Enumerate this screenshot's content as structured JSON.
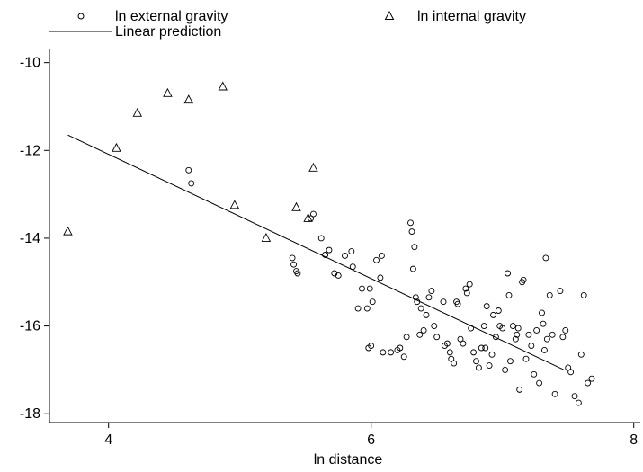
{
  "chart_data": {
    "type": "scatter",
    "xlabel": "ln distance",
    "ylabel": "",
    "xlim": [
      3.55,
      8.05
    ],
    "ylim": [
      -18.2,
      -9.7
    ],
    "xticks": [
      4,
      6,
      8
    ],
    "yticks": [
      -10,
      -12,
      -14,
      -16,
      -18
    ],
    "legend": {
      "placement": "top",
      "items": [
        {
          "label": "ln external gravity",
          "marker": "circle"
        },
        {
          "label": "ln internal gravity",
          "marker": "triangle"
        },
        {
          "label": "Linear prediction",
          "marker": "line"
        }
      ]
    },
    "series": [
      {
        "name": "ln external gravity",
        "marker": "circle",
        "points": [
          [
            4.61,
            -12.45
          ],
          [
            4.63,
            -12.75
          ],
          [
            5.4,
            -14.45
          ],
          [
            5.41,
            -14.6
          ],
          [
            5.43,
            -14.75
          ],
          [
            5.44,
            -14.8
          ],
          [
            5.54,
            -13.55
          ],
          [
            5.56,
            -13.45
          ],
          [
            5.62,
            -14.0
          ],
          [
            5.65,
            -14.38
          ],
          [
            5.68,
            -14.27
          ],
          [
            5.72,
            -14.8
          ],
          [
            5.75,
            -14.85
          ],
          [
            5.8,
            -14.4
          ],
          [
            5.85,
            -14.3
          ],
          [
            5.86,
            -14.65
          ],
          [
            5.9,
            -15.6
          ],
          [
            5.93,
            -15.15
          ],
          [
            5.97,
            -15.6
          ],
          [
            5.98,
            -16.5
          ],
          [
            5.99,
            -15.15
          ],
          [
            6.0,
            -16.45
          ],
          [
            6.01,
            -15.45
          ],
          [
            6.04,
            -14.5
          ],
          [
            6.07,
            -14.9
          ],
          [
            6.08,
            -14.4
          ],
          [
            6.09,
            -16.6
          ],
          [
            6.15,
            -16.6
          ],
          [
            6.2,
            -16.55
          ],
          [
            6.22,
            -16.5
          ],
          [
            6.25,
            -16.7
          ],
          [
            6.27,
            -16.25
          ],
          [
            6.3,
            -13.65
          ],
          [
            6.31,
            -13.85
          ],
          [
            6.32,
            -14.7
          ],
          [
            6.33,
            -14.2
          ],
          [
            6.34,
            -15.35
          ],
          [
            6.35,
            -15.45
          ],
          [
            6.37,
            -16.2
          ],
          [
            6.38,
            -15.6
          ],
          [
            6.4,
            -16.1
          ],
          [
            6.42,
            -15.75
          ],
          [
            6.44,
            -15.35
          ],
          [
            6.46,
            -15.2
          ],
          [
            6.48,
            -16.0
          ],
          [
            6.5,
            -16.25
          ],
          [
            6.55,
            -15.45
          ],
          [
            6.56,
            -16.45
          ],
          [
            6.58,
            -16.4
          ],
          [
            6.6,
            -16.6
          ],
          [
            6.61,
            -16.75
          ],
          [
            6.63,
            -16.85
          ],
          [
            6.65,
            -15.45
          ],
          [
            6.66,
            -15.5
          ],
          [
            6.68,
            -16.3
          ],
          [
            6.7,
            -16.4
          ],
          [
            6.72,
            -15.15
          ],
          [
            6.73,
            -15.25
          ],
          [
            6.75,
            -15.05
          ],
          [
            6.76,
            -16.05
          ],
          [
            6.78,
            -16.6
          ],
          [
            6.8,
            -16.8
          ],
          [
            6.82,
            -16.95
          ],
          [
            6.84,
            -16.5
          ],
          [
            6.86,
            -16.0
          ],
          [
            6.87,
            -16.5
          ],
          [
            6.88,
            -15.55
          ],
          [
            6.9,
            -16.9
          ],
          [
            6.92,
            -16.65
          ],
          [
            6.93,
            -15.75
          ],
          [
            6.95,
            -16.25
          ],
          [
            6.97,
            -15.65
          ],
          [
            6.98,
            -16.0
          ],
          [
            7.0,
            -16.05
          ],
          [
            7.02,
            -17.0
          ],
          [
            7.04,
            -14.8
          ],
          [
            7.05,
            -15.3
          ],
          [
            7.06,
            -16.8
          ],
          [
            7.08,
            -16.0
          ],
          [
            7.1,
            -16.3
          ],
          [
            7.11,
            -16.2
          ],
          [
            7.12,
            -16.05
          ],
          [
            7.13,
            -17.45
          ],
          [
            7.15,
            -15.0
          ],
          [
            7.16,
            -14.95
          ],
          [
            7.18,
            -16.75
          ],
          [
            7.2,
            -16.2
          ],
          [
            7.22,
            -16.45
          ],
          [
            7.24,
            -17.1
          ],
          [
            7.26,
            -16.1
          ],
          [
            7.28,
            -17.3
          ],
          [
            7.3,
            -15.7
          ],
          [
            7.31,
            -15.95
          ],
          [
            7.32,
            -16.55
          ],
          [
            7.33,
            -14.45
          ],
          [
            7.34,
            -16.3
          ],
          [
            7.36,
            -15.3
          ],
          [
            7.38,
            -16.2
          ],
          [
            7.4,
            -17.55
          ],
          [
            7.44,
            -15.2
          ],
          [
            7.46,
            -16.25
          ],
          [
            7.48,
            -16.1
          ],
          [
            7.5,
            -16.95
          ],
          [
            7.52,
            -17.05
          ],
          [
            7.55,
            -17.6
          ],
          [
            7.58,
            -17.75
          ],
          [
            7.6,
            -16.65
          ],
          [
            7.62,
            -15.3
          ],
          [
            7.65,
            -17.3
          ],
          [
            7.68,
            -17.2
          ]
        ]
      },
      {
        "name": "ln internal gravity",
        "marker": "triangle",
        "points": [
          [
            3.69,
            -13.85
          ],
          [
            4.06,
            -11.95
          ],
          [
            4.22,
            -11.15
          ],
          [
            4.45,
            -10.7
          ],
          [
            4.61,
            -10.85
          ],
          [
            4.87,
            -10.55
          ],
          [
            4.96,
            -13.25
          ],
          [
            5.2,
            -14.0
          ],
          [
            5.43,
            -13.3
          ],
          [
            5.52,
            -13.55
          ],
          [
            5.56,
            -12.4
          ]
        ]
      },
      {
        "name": "Linear prediction",
        "marker": "line",
        "points": [
          [
            3.69,
            -11.65
          ],
          [
            7.47,
            -17.0
          ]
        ]
      }
    ]
  }
}
